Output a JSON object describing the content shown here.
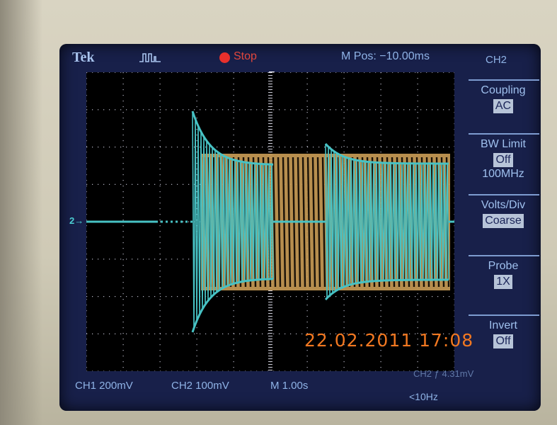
{
  "scope": {
    "brand": "Tek",
    "trigger_icon": "pulse-trigger-icon",
    "run_state": "Stop",
    "horizontal_position": "M Pos: −10.00ms",
    "menu": {
      "title": "CH2",
      "items": [
        {
          "label": "Coupling",
          "values": [
            "AC"
          ],
          "boxed": [
            true
          ]
        },
        {
          "label": "BW Limit",
          "values": [
            "Off",
            "100MHz"
          ],
          "boxed": [
            true,
            false
          ]
        },
        {
          "label": "Volts/Div",
          "values": [
            "Coarse"
          ],
          "boxed": [
            true
          ]
        },
        {
          "label": "Probe",
          "values": [
            "1X"
          ],
          "boxed": [
            true
          ]
        },
        {
          "label": "Invert",
          "values": [
            "Off"
          ],
          "boxed": [
            true
          ]
        }
      ]
    },
    "status_bar": {
      "ch1": "CH1  200mV",
      "ch2": "CH2  100mV",
      "timebase": "M 1.00s",
      "ch2_trigger_faded": "CH2 ƒ  4.31mV",
      "frequency": "<10Hz"
    },
    "channel_marker": "2→",
    "timestamp": "22.02.2011  17:08",
    "colors": {
      "ch1_trace": "#c79a55",
      "ch2_trace": "#47c2c4",
      "run_stop": "#e8302c",
      "timestamp": "#f27821",
      "screen_bg": "#18204a"
    }
  }
}
